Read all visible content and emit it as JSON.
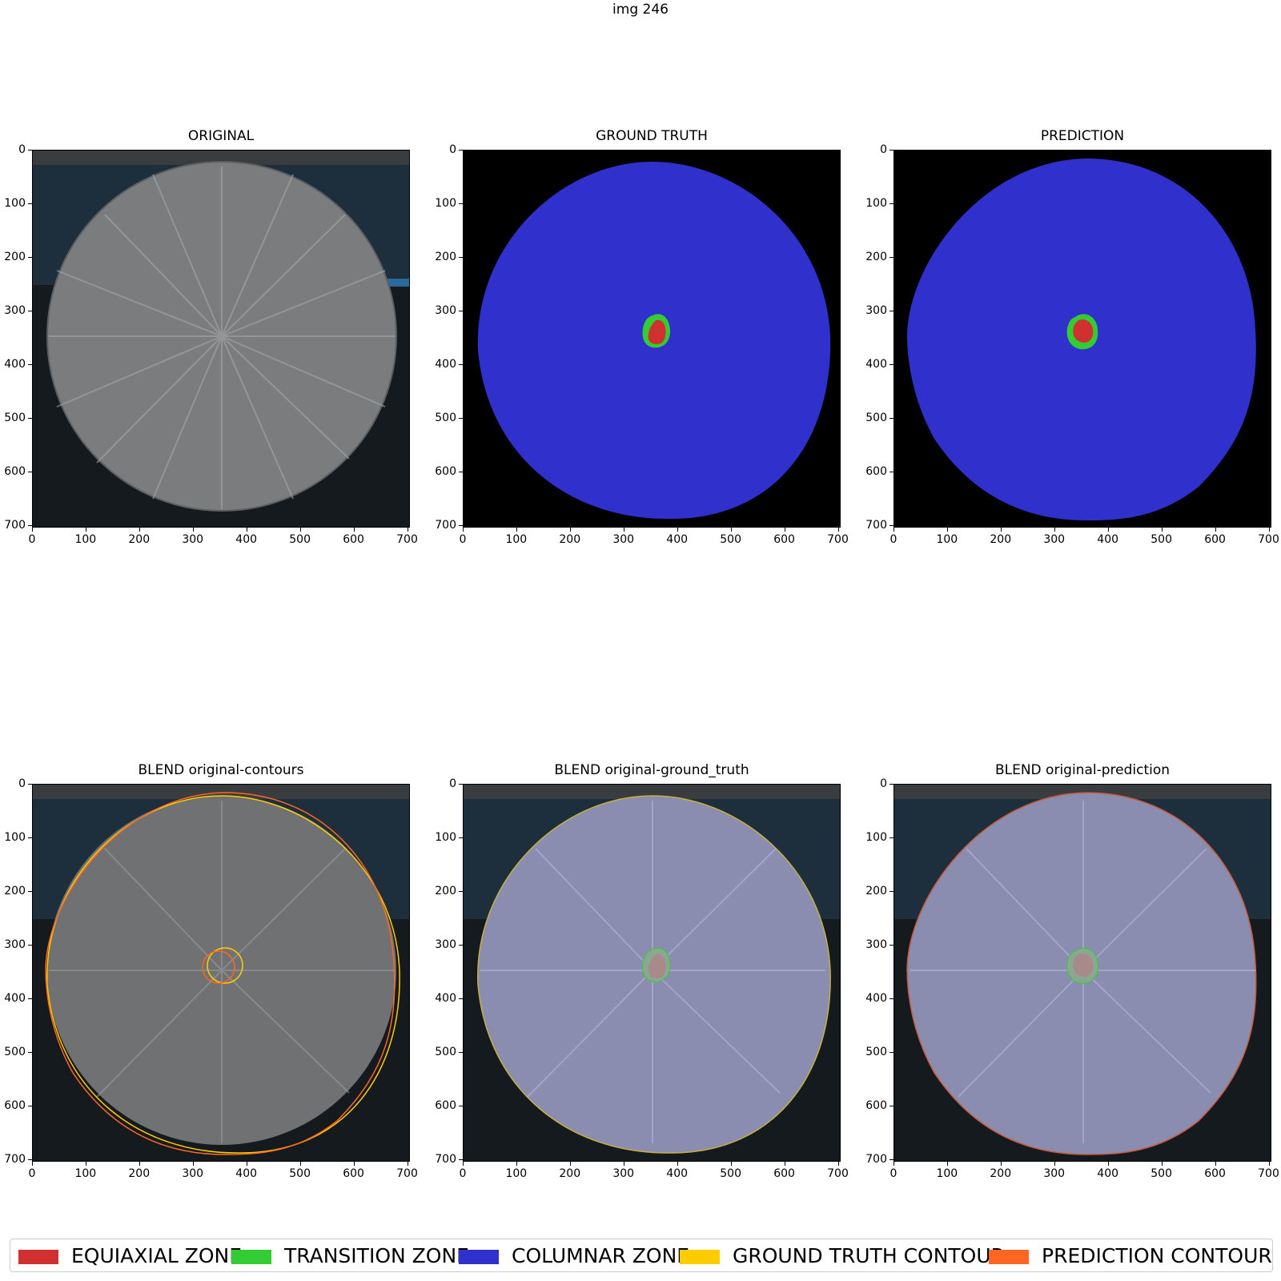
{
  "suptitle": "img 246",
  "axis_ticks": {
    "x": [
      "0",
      "100",
      "200",
      "300",
      "400",
      "500",
      "600",
      "700"
    ],
    "y": [
      "0",
      "100",
      "200",
      "300",
      "400",
      "500",
      "600",
      "700"
    ]
  },
  "panels": [
    {
      "id": "original",
      "title": "ORIGINAL"
    },
    {
      "id": "ground-truth",
      "title": "GROUND TRUTH"
    },
    {
      "id": "prediction",
      "title": "PREDICTION"
    },
    {
      "id": "blend-contours",
      "title": "BLEND original-contours"
    },
    {
      "id": "blend-ground-truth",
      "title": "BLEND original-ground_truth"
    },
    {
      "id": "blend-prediction",
      "title": "BLEND original-prediction"
    }
  ],
  "legend": [
    {
      "label": "EQUIAXIAL ZONE",
      "color": "#d03030"
    },
    {
      "label": "TRANSITION ZONE",
      "color": "#33cc33"
    },
    {
      "label": "COLUMNAR ZONE",
      "color": "#3030cc"
    },
    {
      "label": "GROUND TRUTH CONTOUR",
      "color": "#ffcc00"
    },
    {
      "label": "PREDICTION CONTOUR",
      "color": "#ff6622"
    }
  ],
  "colors": {
    "columnar": "#3030cc",
    "transition": "#33cc33",
    "equiaxial": "#d03030",
    "background": "#000000",
    "steel": "#7a7c7e",
    "gt_contour": "#ffcc00",
    "pred_contour": "#ff6622"
  }
}
